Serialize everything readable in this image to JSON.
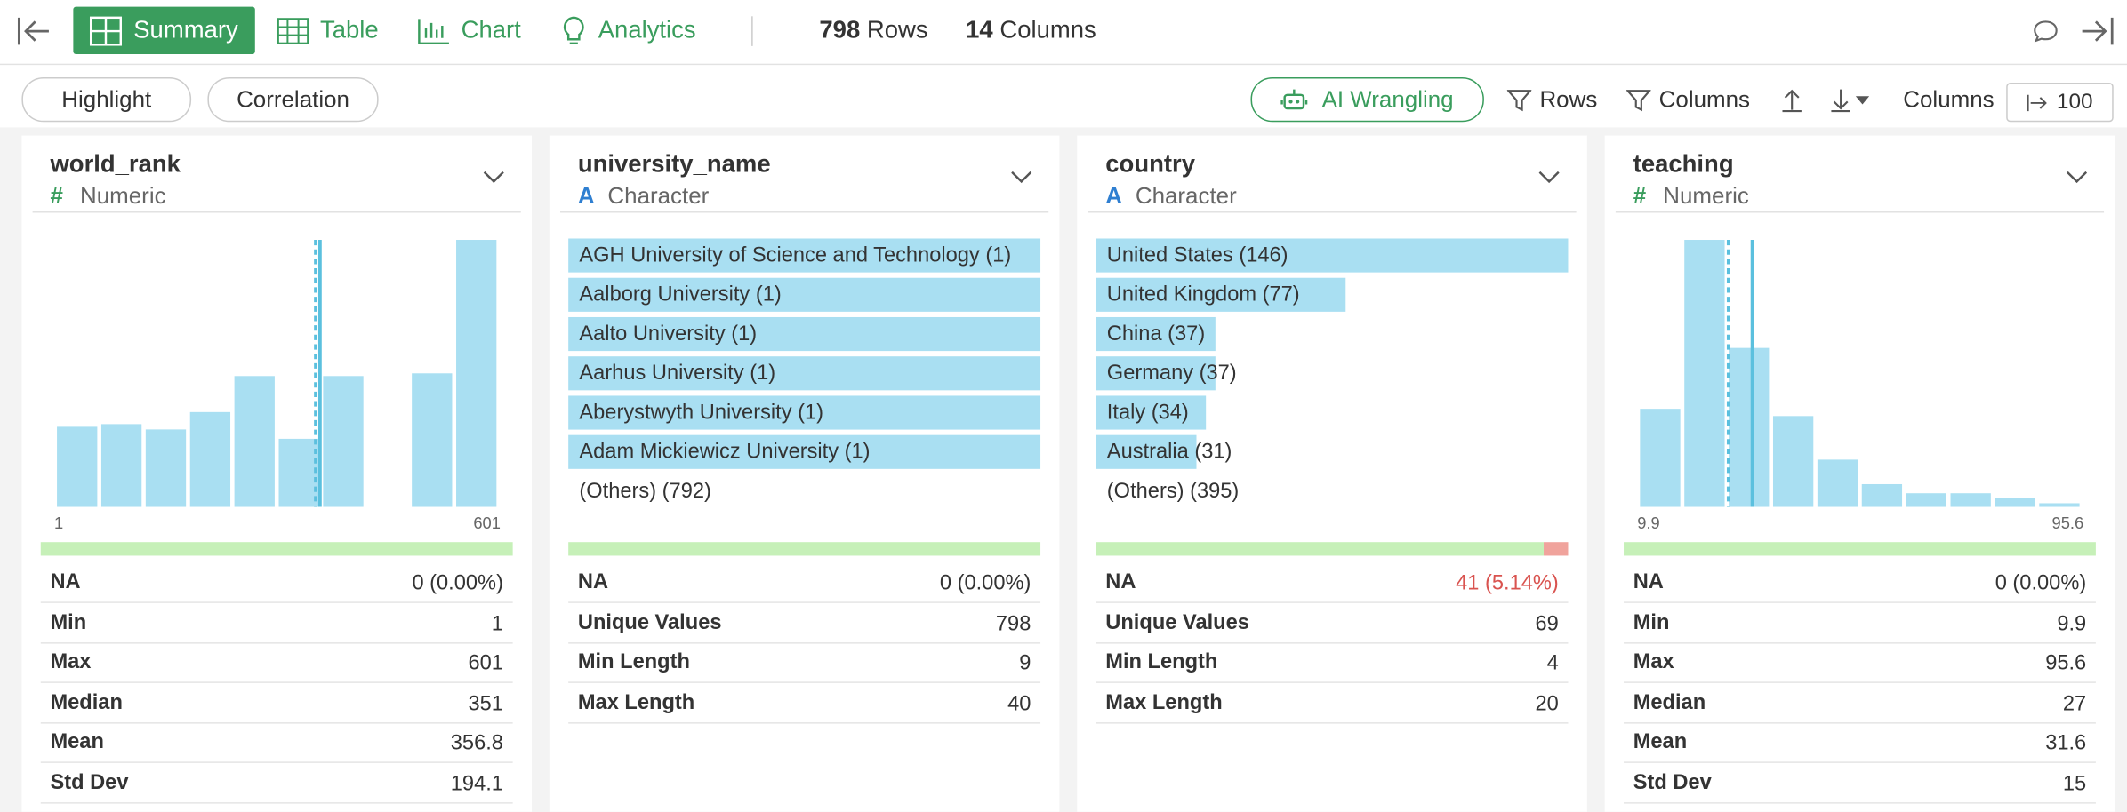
{
  "toolbar": {
    "nav": [
      "Summary",
      "Table",
      "Chart",
      "Analytics"
    ],
    "rows": {
      "count": 798,
      "label": "Rows"
    },
    "columns": {
      "count": 14,
      "label": "Columns"
    }
  },
  "subbar": {
    "left": [
      "Highlight",
      "Correlation"
    ],
    "ai": "AI Wrangling",
    "rows_filter": "Rows",
    "columns_filter": "Columns",
    "columns_label": "Columns",
    "columns_limit": 100
  },
  "cards": [
    {
      "name": "world_rank",
      "type_icon": "#",
      "type": "Numeric",
      "type_color": "#3a9d5d",
      "histogram": {
        "counts": [
          60,
          62,
          58,
          71,
          98,
          51,
          98,
          0,
          100,
          200
        ],
        "color": "#a9dff2",
        "line_color": "#5bc0de"
      },
      "na": {
        "label": "NA",
        "value": "0 (0.00%)",
        "count": 0
      },
      "stats": [
        {
          "label": "Min",
          "value": 1
        },
        {
          "label": "Max",
          "value": 601
        },
        {
          "label": "Median",
          "value": 351
        },
        {
          "label": "Mean",
          "value": 356.8
        },
        {
          "label": "Std Dev",
          "value": 194.1
        }
      ]
    },
    {
      "name": "university_name",
      "type_icon": "A",
      "type": "Character",
      "type_color": "#2f7fd1",
      "items": [
        {
          "label": "AGH University of Science and Technology (1)",
          "count": 1
        },
        {
          "label": "Aalborg University (1)",
          "count": 1
        },
        {
          "label": "Aalto University (1)",
          "count": 1
        },
        {
          "label": "Aarhus University (1)",
          "count": 1
        },
        {
          "label": "Aberystwyth University (1)",
          "count": 1
        },
        {
          "label": "Adam Mickiewicz University (1)",
          "count": 1
        }
      ],
      "others": "(Others) (792)",
      "na": {
        "label": "NA",
        "value": "0 (0.00%)",
        "count": 0
      },
      "stats": [
        {
          "label": "Unique Values",
          "value": 798
        },
        {
          "label": "Min Length",
          "value": 9
        },
        {
          "label": "Max Length",
          "value": 40
        }
      ]
    },
    {
      "name": "country",
      "type_icon": "A",
      "type": "Character",
      "type_color": "#2f7fd1",
      "items": [
        {
          "label": "United States (146)",
          "count": 146
        },
        {
          "label": "United Kingdom (77)",
          "count": 77
        },
        {
          "label": "China (37)",
          "count": 37
        },
        {
          "label": "Germany (37)",
          "count": 37
        },
        {
          "label": "Italy (34)",
          "count": 34
        },
        {
          "label": "Australia (31)",
          "count": 31
        }
      ],
      "others": "(Others) (395)",
      "na": {
        "label": "NA",
        "value": "41 (5.14%)",
        "count": 41
      },
      "stats": [
        {
          "label": "Unique Values",
          "value": 69
        },
        {
          "label": "Min Length",
          "value": 4
        },
        {
          "label": "Max Length",
          "value": 20
        }
      ]
    },
    {
      "name": "teaching",
      "type_icon": "#",
      "type": "Numeric",
      "type_color": "#3a9d5d",
      "histogram": {
        "counts": [
          108,
          294,
          175,
          100,
          52,
          25,
          15,
          15,
          10,
          4
        ],
        "color": "#a9dff2",
        "line_color": "#5bc0de"
      },
      "na": {
        "label": "NA",
        "value": "0 (0.00%)",
        "count": 0
      },
      "stats": [
        {
          "label": "Min",
          "value": 9.9
        },
        {
          "label": "Max",
          "value": 95.6
        },
        {
          "label": "Median",
          "value": 27
        },
        {
          "label": "Mean",
          "value": 31.6
        },
        {
          "label": "Std Dev",
          "value": 15
        }
      ]
    }
  ]
}
